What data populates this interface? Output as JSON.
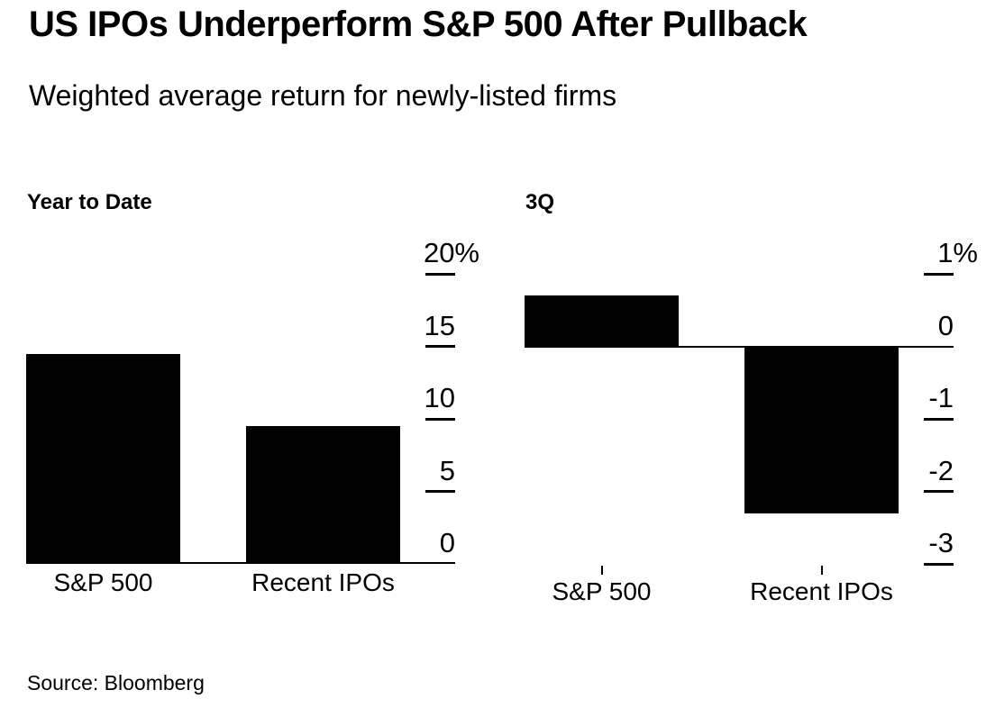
{
  "page": {
    "title": "US IPOs Underperform S&P 500 After Pullback",
    "subtitle": "Weighted average return for newly-listed firms",
    "source": "Source: Bloomberg"
  },
  "colors": {
    "bar": "#000000",
    "axis": "#000000",
    "background": "#ffffff",
    "text": "#000000"
  },
  "chart_data": [
    {
      "type": "bar",
      "title": "Year to Date",
      "categories": [
        "S&P 500",
        "Recent IPOs"
      ],
      "values": [
        14.5,
        9.5
      ],
      "unit": "percent",
      "ylabel": "",
      "xlabel": "",
      "ylim": [
        0,
        20
      ],
      "yticks": [
        20,
        15,
        10,
        5,
        0
      ],
      "ytick_labels": [
        "20%",
        "15",
        "10",
        "5",
        "0"
      ],
      "grid": false,
      "axis_side": "right",
      "bar_color": "#000000"
    },
    {
      "type": "bar",
      "title": "3Q",
      "categories": [
        "S&P 500",
        "Recent IPOs"
      ],
      "values": [
        0.7,
        -2.3
      ],
      "unit": "percent",
      "ylabel": "",
      "xlabel": "",
      "ylim": [
        -3,
        1
      ],
      "yticks": [
        1,
        0,
        -1,
        -2,
        -3
      ],
      "ytick_labels": [
        "1%",
        "0",
        "-1",
        "-2",
        "-3"
      ],
      "grid": false,
      "axis_side": "right",
      "bar_color": "#000000"
    }
  ]
}
